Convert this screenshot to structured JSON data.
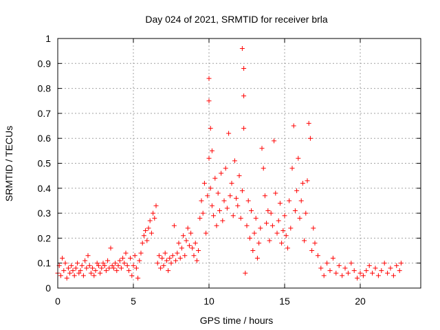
{
  "chart_data": {
    "type": "scatter",
    "title": "Day 024 of 2021, SRMTID for receiver brla",
    "xlabel": "GPS time / hours",
    "ylabel": "SRMTID / TECUs",
    "xlim": [
      0,
      24
    ],
    "ylim": [
      0,
      1
    ],
    "xticks": [
      0,
      5,
      10,
      15,
      20
    ],
    "xtick_labels": [
      "0",
      "5",
      "10",
      "15",
      "20"
    ],
    "yticks": [
      0,
      0.1,
      0.2,
      0.3,
      0.4,
      0.5,
      0.6,
      0.7,
      0.8,
      0.9,
      1
    ],
    "ytick_labels": [
      "0",
      "0.1",
      "0.2",
      "0.3",
      "0.4",
      "0.5",
      "0.6",
      "0.7",
      "0.8",
      "0.9",
      "1"
    ],
    "grid": true,
    "marker": "+",
    "color": "#ff0000",
    "series": [
      {
        "name": "SRMTID",
        "x": [
          0.0,
          0.1,
          0.2,
          0.3,
          0.4,
          0.5,
          0.6,
          0.7,
          0.8,
          0.9,
          1.0,
          1.1,
          1.2,
          1.3,
          1.4,
          1.5,
          1.6,
          1.7,
          1.8,
          1.9,
          2.0,
          2.1,
          2.2,
          2.3,
          2.4,
          2.5,
          2.6,
          2.7,
          2.8,
          2.9,
          3.0,
          3.1,
          3.2,
          3.3,
          3.4,
          3.5,
          3.6,
          3.7,
          3.8,
          3.9,
          4.0,
          4.1,
          4.2,
          4.3,
          4.4,
          4.5,
          4.6,
          4.7,
          4.8,
          4.9,
          5.0,
          5.1,
          5.2,
          5.3,
          5.4,
          5.5,
          5.6,
          5.7,
          5.8,
          5.9,
          6.0,
          6.1,
          6.2,
          6.3,
          6.4,
          6.5,
          6.6,
          6.7,
          6.8,
          6.9,
          7.0,
          7.1,
          7.2,
          7.3,
          7.4,
          7.5,
          7.6,
          7.7,
          7.8,
          7.9,
          8.0,
          8.1,
          8.2,
          8.3,
          8.4,
          8.5,
          8.6,
          8.7,
          8.8,
          8.9,
          9.0,
          9.1,
          9.2,
          9.3,
          9.4,
          9.5,
          9.6,
          9.7,
          9.8,
          9.9,
          10.0,
          10.0,
          10.0,
          10.1,
          10.1,
          10.2,
          10.2,
          10.3,
          10.4,
          10.5,
          10.6,
          10.7,
          10.8,
          10.9,
          11.0,
          11.1,
          11.2,
          11.3,
          11.4,
          11.5,
          11.6,
          11.7,
          11.8,
          11.9,
          12.0,
          12.1,
          12.2,
          12.2,
          12.3,
          12.3,
          12.3,
          12.4,
          12.5,
          12.6,
          12.7,
          12.8,
          12.9,
          13.0,
          13.1,
          13.2,
          13.3,
          13.4,
          13.5,
          13.6,
          13.7,
          13.8,
          13.9,
          14.0,
          14.1,
          14.2,
          14.3,
          14.4,
          14.5,
          14.6,
          14.7,
          14.8,
          14.9,
          15.0,
          15.1,
          15.2,
          15.3,
          15.4,
          15.5,
          15.6,
          15.7,
          15.8,
          15.9,
          16.0,
          16.1,
          16.2,
          16.3,
          16.4,
          16.5,
          16.6,
          16.7,
          16.8,
          16.9,
          17.0,
          17.2,
          17.4,
          17.6,
          17.8,
          18.0,
          18.2,
          18.4,
          18.6,
          18.8,
          19.0,
          19.2,
          19.4,
          19.6,
          19.8,
          20.0,
          20.2,
          20.4,
          20.6,
          20.8,
          21.0,
          21.2,
          21.4,
          21.6,
          21.8,
          22.0,
          22.2,
          22.4,
          22.6,
          22.7
        ],
        "y": [
          0.06,
          0.09,
          0.05,
          0.12,
          0.07,
          0.1,
          0.04,
          0.08,
          0.06,
          0.09,
          0.07,
          0.05,
          0.08,
          0.1,
          0.06,
          0.07,
          0.09,
          0.05,
          0.11,
          0.08,
          0.13,
          0.09,
          0.06,
          0.08,
          0.05,
          0.07,
          0.1,
          0.09,
          0.06,
          0.08,
          0.1,
          0.09,
          0.07,
          0.11,
          0.08,
          0.16,
          0.09,
          0.08,
          0.1,
          0.07,
          0.09,
          0.11,
          0.08,
          0.12,
          0.1,
          0.14,
          0.09,
          0.07,
          0.12,
          0.05,
          0.09,
          0.13,
          0.08,
          0.04,
          0.11,
          0.14,
          0.18,
          0.21,
          0.23,
          0.19,
          0.24,
          0.27,
          0.22,
          0.3,
          0.28,
          0.33,
          0.1,
          0.13,
          0.08,
          0.12,
          0.09,
          0.14,
          0.11,
          0.07,
          0.12,
          0.1,
          0.13,
          0.25,
          0.11,
          0.14,
          0.18,
          0.12,
          0.16,
          0.21,
          0.13,
          0.19,
          0.24,
          0.17,
          0.22,
          0.16,
          0.13,
          0.18,
          0.11,
          0.15,
          0.28,
          0.35,
          0.3,
          0.42,
          0.22,
          0.37,
          0.84,
          0.75,
          0.52,
          0.64,
          0.4,
          0.55,
          0.33,
          0.29,
          0.44,
          0.25,
          0.38,
          0.31,
          0.46,
          0.27,
          0.35,
          0.48,
          0.32,
          0.62,
          0.37,
          0.42,
          0.29,
          0.51,
          0.36,
          0.33,
          0.45,
          0.28,
          0.39,
          0.96,
          0.88,
          0.77,
          0.64,
          0.06,
          0.25,
          0.35,
          0.2,
          0.31,
          0.15,
          0.22,
          0.28,
          0.12,
          0.18,
          0.24,
          0.56,
          0.48,
          0.37,
          0.26,
          0.31,
          0.19,
          0.3,
          0.25,
          0.59,
          0.38,
          0.22,
          0.27,
          0.34,
          0.18,
          0.23,
          0.29,
          0.21,
          0.16,
          0.35,
          0.24,
          0.48,
          0.65,
          0.31,
          0.39,
          0.52,
          0.28,
          0.35,
          0.42,
          0.19,
          0.3,
          0.43,
          0.66,
          0.6,
          0.15,
          0.24,
          0.18,
          0.13,
          0.08,
          0.05,
          0.1,
          0.07,
          0.12,
          0.06,
          0.09,
          0.05,
          0.08,
          0.06,
          0.1,
          0.07,
          0.04,
          0.06,
          0.05,
          0.07,
          0.09,
          0.06,
          0.08,
          0.05,
          0.07,
          0.1,
          0.06,
          0.08,
          0.05,
          0.09,
          0.07,
          0.1
        ]
      }
    ]
  }
}
